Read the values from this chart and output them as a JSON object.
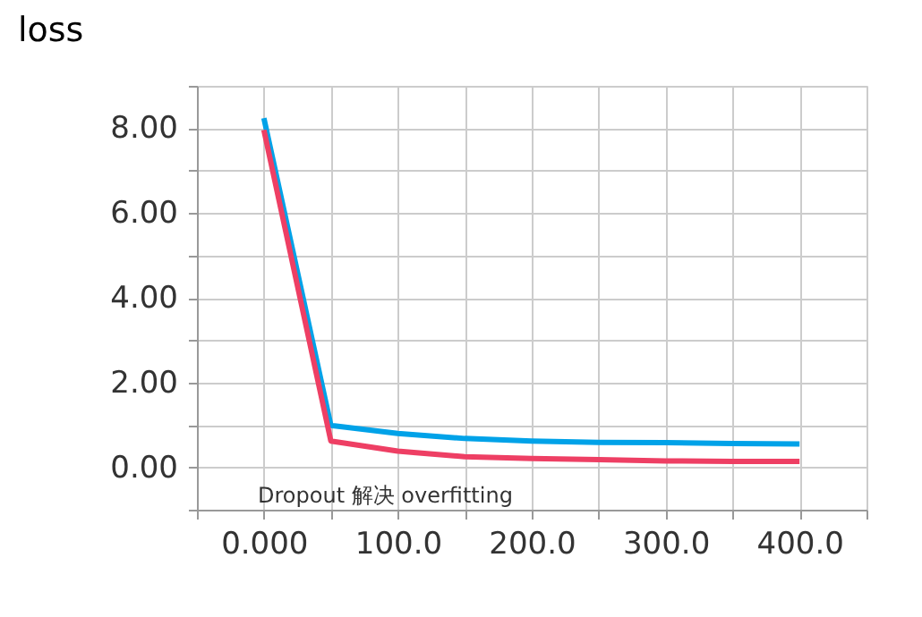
{
  "chart_data": {
    "type": "line",
    "title": "loss",
    "x": [
      0,
      50,
      100,
      150,
      200,
      250,
      300,
      350,
      400
    ],
    "series": [
      {
        "color": "#00a2e8",
        "values": [
          8.24,
          0.99,
          0.8,
          0.68,
          0.62,
          0.59,
          0.58,
          0.56,
          0.55
        ]
      },
      {
        "color": "#ee3f64",
        "values": [
          7.96,
          0.62,
          0.38,
          0.25,
          0.21,
          0.18,
          0.15,
          0.14,
          0.14
        ]
      }
    ],
    "xlim": [
      -50,
      450
    ],
    "xticks": [
      {
        "value": -50,
        "label": null
      },
      {
        "value": 0,
        "label": "0.000"
      },
      {
        "value": 50,
        "label": null
      },
      {
        "value": 100,
        "label": "100.0"
      },
      {
        "value": 150,
        "label": null
      },
      {
        "value": 200,
        "label": "200.0"
      },
      {
        "value": 250,
        "label": null
      },
      {
        "value": 300,
        "label": "300.0"
      },
      {
        "value": 350,
        "label": null
      },
      {
        "value": 400,
        "label": "400.0"
      },
      {
        "value": 450,
        "label": null
      }
    ],
    "ylim": [
      -1,
      9
    ],
    "yticks": [
      {
        "value": -1,
        "label": null
      },
      {
        "value": 0,
        "label": "0.00"
      },
      {
        "value": 1,
        "label": null
      },
      {
        "value": 2,
        "label": "2.00"
      },
      {
        "value": 3,
        "label": null
      },
      {
        "value": 4,
        "label": "4.00"
      },
      {
        "value": 5,
        "label": null
      },
      {
        "value": 6,
        "label": "6.00"
      },
      {
        "value": 7,
        "label": null
      },
      {
        "value": 8,
        "label": "8.00"
      },
      {
        "value": 9,
        "label": null
      }
    ],
    "grid": true,
    "marker": "none",
    "line_style": "solid",
    "legend": false,
    "annotations": [
      "Dropout 解决 overfitting"
    ]
  }
}
